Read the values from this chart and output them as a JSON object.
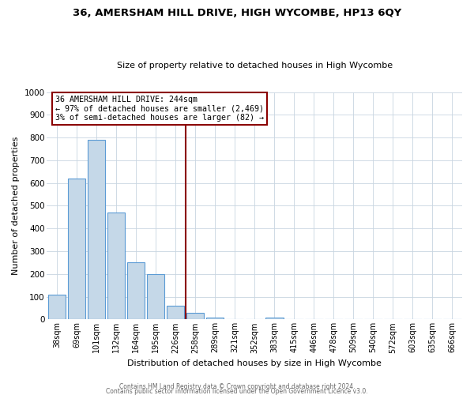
{
  "title": "36, AMERSHAM HILL DRIVE, HIGH WYCOMBE, HP13 6QY",
  "subtitle": "Size of property relative to detached houses in High Wycombe",
  "xlabel": "Distribution of detached houses by size in High Wycombe",
  "ylabel": "Number of detached properties",
  "bar_labels": [
    "38sqm",
    "69sqm",
    "101sqm",
    "132sqm",
    "164sqm",
    "195sqm",
    "226sqm",
    "258sqm",
    "289sqm",
    "321sqm",
    "352sqm",
    "383sqm",
    "415sqm",
    "446sqm",
    "478sqm",
    "509sqm",
    "540sqm",
    "572sqm",
    "603sqm",
    "635sqm",
    "666sqm"
  ],
  "bar_values": [
    110,
    620,
    790,
    470,
    250,
    200,
    60,
    30,
    10,
    0,
    0,
    10,
    0,
    0,
    0,
    0,
    0,
    0,
    0,
    0,
    0
  ],
  "bar_color": "#c5d8e8",
  "bar_edge_color": "#5b9bd5",
  "ylim": [
    0,
    1000
  ],
  "yticks": [
    0,
    100,
    200,
    300,
    400,
    500,
    600,
    700,
    800,
    900,
    1000
  ],
  "vline_x": 6.5,
  "vline_color": "#8b0000",
  "annotation_title": "36 AMERSHAM HILL DRIVE: 244sqm",
  "annotation_line1": "← 97% of detached houses are smaller (2,469)",
  "annotation_line2": "3% of semi-detached houses are larger (82) →",
  "annotation_box_color": "#8b0000",
  "footer_line1": "Contains HM Land Registry data © Crown copyright and database right 2024.",
  "footer_line2": "Contains public sector information licensed under the Open Government Licence v3.0.",
  "background_color": "#ffffff",
  "grid_color": "#c8d4e0"
}
